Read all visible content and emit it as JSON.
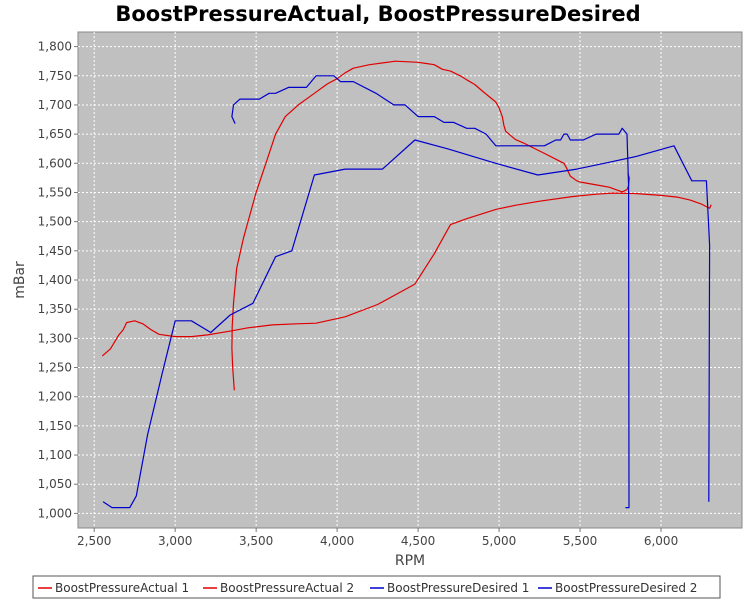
{
  "chart_data": {
    "type": "line",
    "title": "BoostPressureActual, BoostPressureDesired",
    "xlabel": "RPM",
    "ylabel": "mBar",
    "xlim": [
      2400,
      6500
    ],
    "ylim": [
      975,
      1825
    ],
    "x_ticks": [
      2500,
      3000,
      3500,
      4000,
      4500,
      5000,
      5500,
      6000
    ],
    "x_tick_labels": [
      "2,500",
      "3,000",
      "3,500",
      "4,000",
      "4,500",
      "5,000",
      "5,500",
      "6,000"
    ],
    "y_ticks": [
      1000,
      1050,
      1100,
      1150,
      1200,
      1250,
      1300,
      1350,
      1400,
      1450,
      1500,
      1550,
      1600,
      1650,
      1700,
      1750,
      1800
    ],
    "y_tick_labels": [
      "1,000",
      "1,050",
      "1,100",
      "1,150",
      "1,200",
      "1,250",
      "1,300",
      "1,350",
      "1,400",
      "1,450",
      "1,500",
      "1,550",
      "1,600",
      "1,650",
      "1,700",
      "1,750",
      "1,800"
    ],
    "grid": true,
    "plot_background": "#c0c0c0",
    "legend_position": "bottom",
    "series": [
      {
        "name": "BoostPressureActual 1",
        "color": "#e00000",
        "points": [
          [
            2550,
            1270
          ],
          [
            2600,
            1282
          ],
          [
            2650,
            1305
          ],
          [
            2680,
            1315
          ],
          [
            2700,
            1327
          ],
          [
            2750,
            1330
          ],
          [
            2800,
            1325
          ],
          [
            2850,
            1315
          ],
          [
            2900,
            1307
          ],
          [
            3000,
            1303
          ],
          [
            3100,
            1303
          ],
          [
            3200,
            1306
          ],
          [
            3350,
            1313
          ],
          [
            3450,
            1318
          ],
          [
            3600,
            1323
          ],
          [
            3750,
            1325
          ],
          [
            3870,
            1326
          ],
          [
            4050,
            1337
          ],
          [
            4250,
            1358
          ],
          [
            4480,
            1393
          ],
          [
            4600,
            1445
          ],
          [
            4700,
            1495
          ],
          [
            4800,
            1505
          ],
          [
            4980,
            1521
          ],
          [
            5100,
            1528
          ],
          [
            5250,
            1535
          ],
          [
            5450,
            1543
          ],
          [
            5600,
            1547
          ],
          [
            5700,
            1549
          ],
          [
            5850,
            1548
          ],
          [
            6000,
            1545
          ],
          [
            6100,
            1542
          ],
          [
            6180,
            1537
          ],
          [
            6250,
            1530
          ],
          [
            6300,
            1523
          ],
          [
            6310,
            1529
          ]
        ]
      },
      {
        "name": "BoostPressureActual 2",
        "color": "#e00000",
        "points": [
          [
            3365,
            1211
          ],
          [
            3355,
            1250
          ],
          [
            3350,
            1283
          ],
          [
            3352,
            1320
          ],
          [
            3360,
            1360
          ],
          [
            3380,
            1420
          ],
          [
            3420,
            1470
          ],
          [
            3450,
            1500
          ],
          [
            3500,
            1550
          ],
          [
            3560,
            1600
          ],
          [
            3620,
            1650
          ],
          [
            3680,
            1680
          ],
          [
            3760,
            1700
          ],
          [
            3860,
            1720
          ],
          [
            3940,
            1736
          ],
          [
            4000,
            1745
          ],
          [
            4050,
            1755
          ],
          [
            4100,
            1763
          ],
          [
            4200,
            1769
          ],
          [
            4360,
            1775
          ],
          [
            4500,
            1773
          ],
          [
            4550,
            1771
          ],
          [
            4600,
            1769
          ],
          [
            4650,
            1761
          ],
          [
            4700,
            1758
          ],
          [
            4760,
            1750
          ],
          [
            4800,
            1743
          ],
          [
            4850,
            1735
          ],
          [
            4900,
            1723
          ],
          [
            4980,
            1705
          ],
          [
            5000,
            1695
          ],
          [
            5020,
            1680
          ],
          [
            5030,
            1665
          ],
          [
            5040,
            1655
          ],
          [
            5100,
            1641
          ],
          [
            5150,
            1635
          ],
          [
            5200,
            1628
          ],
          [
            5280,
            1617
          ],
          [
            5350,
            1607
          ],
          [
            5400,
            1600
          ],
          [
            5420,
            1590
          ],
          [
            5440,
            1578
          ],
          [
            5480,
            1570
          ],
          [
            5500,
            1568
          ],
          [
            5600,
            1563
          ],
          [
            5680,
            1559
          ],
          [
            5720,
            1555
          ],
          [
            5760,
            1551
          ],
          [
            5790,
            1555
          ],
          [
            5800,
            1562
          ],
          [
            5805,
            1575
          ],
          [
            5795,
            1583
          ]
        ]
      },
      {
        "name": "BoostPressureDesired 1",
        "color": "#0000cc",
        "points": [
          [
            2555,
            1020
          ],
          [
            2610,
            1010
          ],
          [
            2720,
            1010
          ],
          [
            2760,
            1030
          ],
          [
            2830,
            1135
          ],
          [
            2920,
            1240
          ],
          [
            3000,
            1330
          ],
          [
            3100,
            1330
          ],
          [
            3220,
            1310
          ],
          [
            3340,
            1340
          ],
          [
            3480,
            1360
          ],
          [
            3620,
            1440
          ],
          [
            3720,
            1450
          ],
          [
            3860,
            1580
          ],
          [
            4050,
            1590
          ],
          [
            4280,
            1590
          ],
          [
            4480,
            1640
          ],
          [
            4680,
            1625
          ],
          [
            4980,
            1600
          ],
          [
            5240,
            1580
          ],
          [
            5480,
            1590
          ],
          [
            5650,
            1600
          ],
          [
            5850,
            1612
          ],
          [
            6080,
            1630
          ],
          [
            6190,
            1570
          ],
          [
            6280,
            1570
          ],
          [
            6300,
            1460
          ],
          [
            6295,
            1020
          ]
        ]
      },
      {
        "name": "BoostPressureDesired 2",
        "color": "#0000cc",
        "points": [
          [
            3370,
            1668
          ],
          [
            3350,
            1680
          ],
          [
            3360,
            1700
          ],
          [
            3400,
            1710
          ],
          [
            3520,
            1710
          ],
          [
            3580,
            1720
          ],
          [
            3620,
            1720
          ],
          [
            3700,
            1730
          ],
          [
            3810,
            1730
          ],
          [
            3870,
            1750
          ],
          [
            3980,
            1750
          ],
          [
            4020,
            1740
          ],
          [
            4100,
            1740
          ],
          [
            4240,
            1720
          ],
          [
            4350,
            1700
          ],
          [
            4420,
            1700
          ],
          [
            4500,
            1680
          ],
          [
            4600,
            1680
          ],
          [
            4660,
            1670
          ],
          [
            4720,
            1670
          ],
          [
            4800,
            1660
          ],
          [
            4850,
            1660
          ],
          [
            4920,
            1650
          ],
          [
            4980,
            1630
          ],
          [
            5100,
            1630
          ],
          [
            5280,
            1630
          ],
          [
            5350,
            1640
          ],
          [
            5380,
            1640
          ],
          [
            5400,
            1650
          ],
          [
            5420,
            1650
          ],
          [
            5440,
            1640
          ],
          [
            5520,
            1640
          ],
          [
            5600,
            1650
          ],
          [
            5740,
            1650
          ],
          [
            5760,
            1660
          ],
          [
            5790,
            1650
          ],
          [
            5800,
            1560
          ],
          [
            5802,
            1010
          ],
          [
            5780,
            1010
          ]
        ]
      }
    ]
  }
}
